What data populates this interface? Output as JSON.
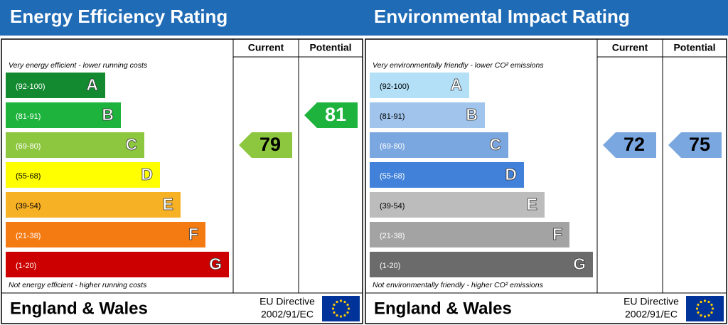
{
  "panels": [
    {
      "title": "Energy Efficiency Rating",
      "columns": [
        "Current",
        "Potential"
      ],
      "top_note": "Very energy efficient - lower running costs",
      "bottom_note": "Not energy efficient - higher running costs",
      "bands": [
        {
          "range": "(92-100)",
          "letter": "A",
          "color": "#138a2f"
        },
        {
          "range": "(81-91)",
          "letter": "B",
          "color": "#1db33c"
        },
        {
          "range": "(69-80)",
          "letter": "C",
          "color": "#8dc63f"
        },
        {
          "range": "(55-68)",
          "letter": "D",
          "color": "#ffff00"
        },
        {
          "range": "(39-54)",
          "letter": "E",
          "color": "#f7b125"
        },
        {
          "range": "(21-38)",
          "letter": "F",
          "color": "#f47a12"
        },
        {
          "range": "(1-20)",
          "letter": "G",
          "color": "#cc0000"
        }
      ],
      "current": 79,
      "potential": 81,
      "footer": {
        "region": "England & Wales",
        "directive_line1": "EU Directive",
        "directive_line2": "2002/91/EC"
      }
    },
    {
      "title": "Environmental Impact Rating",
      "columns": [
        "Current",
        "Potential"
      ],
      "top_note": "Very environmentally friendly - lower CO² emissions",
      "bottom_note": "Not environmentally friendly - higher CO² emissions",
      "bands": [
        {
          "range": "(92-100)",
          "letter": "A",
          "color": "#b3dff7"
        },
        {
          "range": "(81-91)",
          "letter": "B",
          "color": "#a0c4ec"
        },
        {
          "range": "(69-80)",
          "letter": "C",
          "color": "#7ba7e0"
        },
        {
          "range": "(55-68)",
          "letter": "D",
          "color": "#4181d9"
        },
        {
          "range": "(39-54)",
          "letter": "E",
          "color": "#bcbcbc"
        },
        {
          "range": "(21-38)",
          "letter": "F",
          "color": "#a3a3a3"
        },
        {
          "range": "(1-20)",
          "letter": "G",
          "color": "#6b6b6b"
        }
      ],
      "current": 72,
      "potential": 75,
      "footer": {
        "region": "England & Wales",
        "directive_line1": "EU Directive",
        "directive_line2": "2002/91/EC"
      }
    }
  ]
}
